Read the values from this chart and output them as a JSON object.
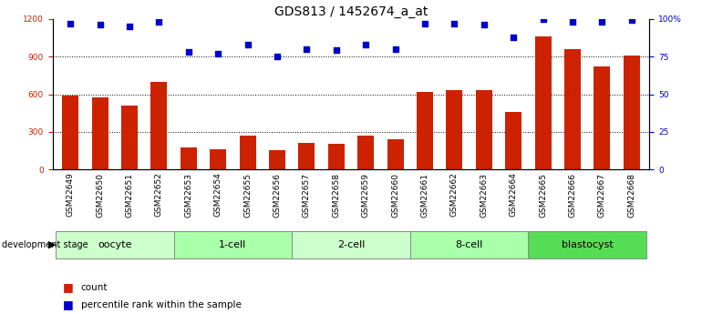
{
  "title": "GDS813 / 1452674_a_at",
  "samples": [
    "GSM22649",
    "GSM22650",
    "GSM22651",
    "GSM22652",
    "GSM22653",
    "GSM22654",
    "GSM22655",
    "GSM22656",
    "GSM22657",
    "GSM22658",
    "GSM22659",
    "GSM22660",
    "GSM22661",
    "GSM22662",
    "GSM22663",
    "GSM22664",
    "GSM22665",
    "GSM22666",
    "GSM22667",
    "GSM22668"
  ],
  "counts": [
    590,
    575,
    510,
    700,
    175,
    160,
    270,
    155,
    210,
    205,
    270,
    240,
    620,
    630,
    635,
    460,
    1060,
    960,
    820,
    905
  ],
  "percentiles": [
    97,
    96,
    95,
    98,
    78,
    77,
    83,
    75,
    80,
    79,
    83,
    80,
    97,
    97,
    96,
    88,
    100,
    98,
    98,
    99
  ],
  "groups": [
    {
      "label": "oocyte",
      "start": 0,
      "end": 3,
      "color": "#ccffcc"
    },
    {
      "label": "1-cell",
      "start": 4,
      "end": 7,
      "color": "#aaffaa"
    },
    {
      "label": "2-cell",
      "start": 8,
      "end": 11,
      "color": "#ccffcc"
    },
    {
      "label": "8-cell",
      "start": 12,
      "end": 15,
      "color": "#aaffaa"
    },
    {
      "label": "blastocyst",
      "start": 16,
      "end": 19,
      "color": "#55dd55"
    }
  ],
  "bar_color": "#cc2200",
  "dot_color": "#0000cc",
  "left_ylim": [
    0,
    1200
  ],
  "left_yticks": [
    0,
    300,
    600,
    900,
    1200
  ],
  "right_ylim": [
    0,
    100
  ],
  "right_yticks": [
    0,
    25,
    50,
    75,
    100
  ],
  "title_fontsize": 10,
  "tick_fontsize": 6.5,
  "group_fontsize": 8
}
